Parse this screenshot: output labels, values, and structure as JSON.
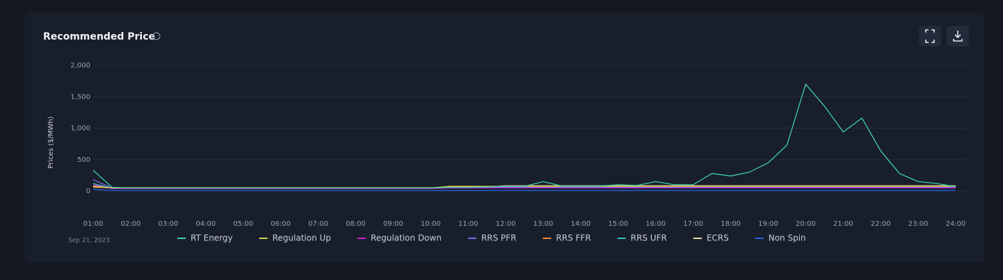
{
  "chart_data": {
    "type": "line",
    "title": "Recommended Price",
    "y_label": "Prices ($/MWh)",
    "date_label": "Sep 21, 2023",
    "x": [
      1,
      1.5,
      2,
      2.5,
      3,
      3.5,
      4,
      4.5,
      5,
      5.5,
      6,
      6.5,
      7,
      7.5,
      8,
      8.5,
      9,
      9.5,
      10,
      10.5,
      11,
      11.5,
      12,
      12.5,
      13,
      13.5,
      14,
      14.5,
      15,
      15.5,
      16,
      16.5,
      17,
      17.5,
      18,
      18.5,
      19,
      19.5,
      20,
      20.5,
      21,
      21.5,
      22,
      22.5,
      23,
      23.5,
      24
    ],
    "xlim": [
      1,
      24
    ],
    "xticks": [
      {
        "value": 1,
        "label": "01:00"
      },
      {
        "value": 2,
        "label": "02:00"
      },
      {
        "value": 3,
        "label": "03:00"
      },
      {
        "value": 4,
        "label": "04:00"
      },
      {
        "value": 5,
        "label": "05:00"
      },
      {
        "value": 6,
        "label": "06:00"
      },
      {
        "value": 7,
        "label": "07:00"
      },
      {
        "value": 8,
        "label": "08:00"
      },
      {
        "value": 9,
        "label": "09:00"
      },
      {
        "value": 10,
        "label": "10:00"
      },
      {
        "value": 11,
        "label": "11:00"
      },
      {
        "value": 12,
        "label": "12:00"
      },
      {
        "value": 13,
        "label": "13:00"
      },
      {
        "value": 14,
        "label": "14:00"
      },
      {
        "value": 15,
        "label": "15:00"
      },
      {
        "value": 16,
        "label": "16:00"
      },
      {
        "value": 17,
        "label": "17:00"
      },
      {
        "value": 18,
        "label": "18:00"
      },
      {
        "value": 19,
        "label": "19:00"
      },
      {
        "value": 20,
        "label": "20:00"
      },
      {
        "value": 21,
        "label": "21:00"
      },
      {
        "value": 22,
        "label": "22:00"
      },
      {
        "value": 23,
        "label": "23:00"
      },
      {
        "value": 24,
        "label": "24:00"
      }
    ],
    "ylim": [
      0,
      2000
    ],
    "yticks": [
      0,
      500,
      {
        "value": 1000,
        "label": "1,000"
      },
      {
        "value": 1500,
        "label": "1,500"
      },
      {
        "value": 2000,
        "label": "2,000"
      }
    ],
    "grid": true,
    "series": [
      {
        "name": "RT Energy",
        "color": "#3ecfb0",
        "values": [
          330,
          60,
          50,
          50,
          50,
          50,
          50,
          50,
          50,
          50,
          50,
          50,
          50,
          50,
          50,
          50,
          50,
          50,
          50,
          60,
          60,
          65,
          75,
          75,
          150,
          80,
          80,
          80,
          100,
          90,
          150,
          100,
          100,
          280,
          240,
          300,
          450,
          730,
          1700,
          1350,
          940,
          1160,
          640,
          280,
          150,
          120,
          70
        ]
      },
      {
        "name": "Regulation Up",
        "color": "#d6d84a",
        "values": [
          80,
          50,
          50,
          50,
          50,
          50,
          50,
          50,
          50,
          50,
          50,
          50,
          50,
          50,
          50,
          50,
          50,
          50,
          50,
          75,
          75,
          75,
          75,
          75,
          75,
          75,
          75,
          75,
          75,
          75,
          75,
          75,
          75,
          75,
          75,
          75,
          75,
          75,
          75,
          75,
          75,
          75,
          75,
          75,
          75,
          75,
          75
        ]
      },
      {
        "name": "Regulation Down",
        "color": "#c026d3",
        "values": [
          100,
          40,
          40,
          40,
          40,
          40,
          40,
          40,
          40,
          40,
          40,
          40,
          40,
          40,
          40,
          40,
          40,
          40,
          40,
          50,
          50,
          50,
          50,
          50,
          50,
          50,
          50,
          50,
          50,
          50,
          50,
          50,
          50,
          50,
          50,
          50,
          50,
          50,
          50,
          50,
          50,
          50,
          50,
          50,
          50,
          50,
          50
        ]
      },
      {
        "name": "RRS PFR",
        "color": "#7c6cf0",
        "values": [
          180,
          50,
          50,
          50,
          50,
          50,
          50,
          50,
          50,
          50,
          50,
          50,
          50,
          50,
          50,
          50,
          50,
          50,
          50,
          60,
          60,
          60,
          60,
          60,
          60,
          60,
          60,
          60,
          60,
          60,
          60,
          60,
          60,
          60,
          60,
          60,
          60,
          60,
          60,
          60,
          60,
          60,
          60,
          60,
          60,
          60,
          60
        ]
      },
      {
        "name": "RRS FFR",
        "color": "#f0883e",
        "values": [
          60,
          55,
          55,
          55,
          55,
          55,
          55,
          55,
          55,
          55,
          55,
          55,
          55,
          55,
          55,
          55,
          55,
          55,
          55,
          60,
          60,
          60,
          80,
          80,
          80,
          80,
          80,
          80,
          80,
          80,
          80,
          80,
          80,
          80,
          80,
          80,
          80,
          80,
          80,
          80,
          80,
          80,
          80,
          80,
          80,
          80,
          80
        ]
      },
      {
        "name": "RRS UFR",
        "color": "#36c2c9",
        "values": [
          120,
          45,
          45,
          45,
          45,
          45,
          45,
          45,
          45,
          45,
          45,
          45,
          45,
          45,
          45,
          45,
          45,
          45,
          45,
          60,
          60,
          60,
          60,
          60,
          60,
          60,
          60,
          60,
          60,
          60,
          60,
          60,
          60,
          60,
          60,
          60,
          60,
          60,
          60,
          60,
          60,
          60,
          60,
          60,
          60,
          60,
          60
        ]
      },
      {
        "name": "ECRS",
        "color": "#e8dcb0",
        "values": [
          70,
          48,
          48,
          48,
          48,
          48,
          48,
          48,
          48,
          48,
          48,
          48,
          48,
          48,
          48,
          48,
          48,
          48,
          48,
          65,
          65,
          65,
          85,
          85,
          85,
          85,
          85,
          85,
          85,
          85,
          85,
          85,
          85,
          85,
          85,
          85,
          85,
          85,
          85,
          85,
          85,
          85,
          85,
          85,
          85,
          85,
          85
        ]
      },
      {
        "name": "Non Spin",
        "color": "#2563eb",
        "values": [
          30,
          10,
          10,
          10,
          10,
          10,
          10,
          10,
          10,
          10,
          10,
          10,
          10,
          10,
          10,
          10,
          10,
          10,
          10,
          10,
          10,
          10,
          10,
          10,
          10,
          10,
          10,
          10,
          10,
          10,
          10,
          10,
          10,
          10,
          10,
          10,
          10,
          10,
          10,
          10,
          10,
          10,
          10,
          10,
          10,
          10,
          10
        ]
      }
    ]
  }
}
